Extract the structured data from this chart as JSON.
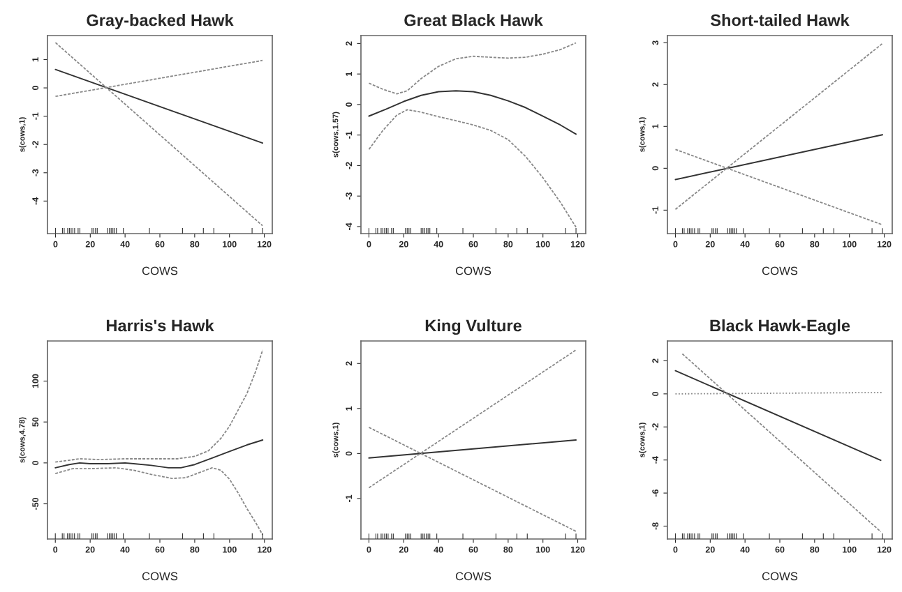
{
  "chart_data": [
    {
      "type": "line",
      "title": "Gray-backed Hawk",
      "xlabel": "COWS",
      "ylabel": "s(cows,1)",
      "xlim": [
        -4.6,
        124.6
      ],
      "ylim": [
        -5.15,
        1.85
      ],
      "xticks": [
        0,
        20,
        40,
        60,
        80,
        100,
        120
      ],
      "yticks": [
        -4,
        -3,
        -2,
        -1,
        0,
        1
      ],
      "series": [
        {
          "color": "#333333",
          "line_style": "solid",
          "x": [
            0,
            119
          ],
          "values": [
            0.65,
            -1.95
          ]
        },
        {
          "color": "#888888",
          "line_style": "dashed",
          "x": [
            0,
            119
          ],
          "values": [
            -0.3,
            0.97
          ]
        },
        {
          "color": "#888888",
          "line_style": "dashed",
          "x": [
            0,
            119
          ],
          "values": [
            1.6,
            -4.87
          ]
        },
        {
          "type": "bar",
          "color": "#333333",
          "x": [
            0,
            4,
            5,
            7,
            8,
            9,
            10,
            11,
            13,
            14,
            21,
            22,
            23,
            24,
            30,
            31,
            32,
            33,
            34,
            35,
            39,
            54,
            73,
            85,
            91,
            113,
            119
          ],
          "base": [
            -5.15,
            -5.15,
            -5.15,
            -5.15,
            -5.15,
            -5.15,
            -5.15,
            -5.15,
            -5.15,
            -5.15,
            -5.15,
            -5.15,
            -5.15,
            -5.15,
            -5.15,
            -5.15,
            -5.15,
            -5.15,
            -5.15,
            -5.15,
            -5.15,
            -5.15,
            -5.15,
            -5.15,
            -5.15,
            -5.15,
            -5.15
          ],
          "values": [
            0.2,
            0.2,
            0.2,
            0.2,
            0.2,
            0.2,
            0.2,
            0.2,
            0.2,
            0.2,
            0.2,
            0.2,
            0.2,
            0.2,
            0.2,
            0.2,
            0.2,
            0.2,
            0.2,
            0.2,
            0.2,
            0.2,
            0.2,
            0.2,
            0.2,
            0.2,
            0.2
          ]
        }
      ]
    },
    {
      "type": "line",
      "title": "Great Black Hawk",
      "xlabel": "COWS",
      "ylabel": "s(cows,1.57)",
      "xlim": [
        -4.6,
        124.6
      ],
      "ylim": [
        -4.23,
        2.26
      ],
      "xticks": [
        0,
        20,
        40,
        60,
        80,
        100,
        120
      ],
      "yticks": [
        -4,
        -3,
        -2,
        -1,
        0,
        1,
        2
      ],
      "series": [
        {
          "color": "#333333",
          "line_style": "solid",
          "x": [
            0,
            10,
            20,
            30,
            40,
            50,
            60,
            70,
            80,
            90,
            100,
            110,
            119
          ],
          "values": [
            -0.38,
            -0.15,
            0.1,
            0.3,
            0.42,
            0.45,
            0.42,
            0.3,
            0.12,
            -0.1,
            -0.38,
            -0.67,
            -0.97
          ]
        },
        {
          "color": "#888888",
          "line_style": "dashed",
          "x": [
            0,
            8,
            16,
            22,
            30,
            40,
            50,
            60,
            70,
            80,
            90,
            100,
            110,
            119
          ],
          "values": [
            0.7,
            0.5,
            0.35,
            0.45,
            0.85,
            1.25,
            1.5,
            1.58,
            1.55,
            1.52,
            1.55,
            1.65,
            1.8,
            2.02
          ]
        },
        {
          "color": "#888888",
          "line_style": "dashed",
          "x": [
            0,
            8,
            16,
            22,
            30,
            40,
            50,
            60,
            70,
            80,
            90,
            100,
            110,
            119
          ],
          "values": [
            -1.47,
            -0.85,
            -0.35,
            -0.17,
            -0.25,
            -0.4,
            -0.53,
            -0.67,
            -0.85,
            -1.15,
            -1.7,
            -2.4,
            -3.2,
            -4.02
          ]
        },
        {
          "type": "bar",
          "color": "#333333",
          "x": [
            0,
            4,
            5,
            7,
            8,
            9,
            10,
            11,
            13,
            14,
            21,
            22,
            23,
            24,
            30,
            31,
            32,
            33,
            34,
            35,
            39,
            54,
            73,
            85,
            91,
            113,
            119
          ],
          "base": [
            -4.23,
            -4.23,
            -4.23,
            -4.23,
            -4.23,
            -4.23,
            -4.23,
            -4.23,
            -4.23,
            -4.23,
            -4.23,
            -4.23,
            -4.23,
            -4.23,
            -4.23,
            -4.23,
            -4.23,
            -4.23,
            -4.23,
            -4.23,
            -4.23,
            -4.23,
            -4.23,
            -4.23,
            -4.23,
            -4.23,
            -4.23
          ],
          "values": [
            0.18,
            0.18,
            0.18,
            0.18,
            0.18,
            0.18,
            0.18,
            0.18,
            0.18,
            0.18,
            0.18,
            0.18,
            0.18,
            0.18,
            0.18,
            0.18,
            0.18,
            0.18,
            0.18,
            0.18,
            0.18,
            0.18,
            0.18,
            0.18,
            0.18,
            0.18,
            0.18
          ]
        }
      ]
    },
    {
      "type": "line",
      "title": "Short-tailed Hawk",
      "xlabel": "COWS",
      "ylabel": "s(cows,1)",
      "xlim": [
        -4.6,
        124.6
      ],
      "ylim": [
        -1.56,
        3.17
      ],
      "xticks": [
        0,
        20,
        40,
        60,
        80,
        100,
        120
      ],
      "yticks": [
        -1,
        0,
        1,
        2,
        3
      ],
      "series": [
        {
          "color": "#333333",
          "line_style": "solid",
          "x": [
            0,
            119
          ],
          "values": [
            -0.27,
            0.8
          ]
        },
        {
          "color": "#888888",
          "line_style": "dashed",
          "x": [
            0,
            119
          ],
          "values": [
            -0.98,
            2.98
          ]
        },
        {
          "color": "#888888",
          "line_style": "dashed",
          "x": [
            0,
            119
          ],
          "values": [
            0.45,
            -1.35
          ]
        },
        {
          "type": "bar",
          "color": "#333333",
          "x": [
            0,
            4,
            5,
            7,
            8,
            9,
            10,
            11,
            13,
            14,
            21,
            22,
            23,
            24,
            30,
            31,
            32,
            33,
            34,
            35,
            39,
            54,
            73,
            85,
            91,
            113,
            119
          ],
          "base": [
            -1.56,
            -1.56,
            -1.56,
            -1.56,
            -1.56,
            -1.56,
            -1.56,
            -1.56,
            -1.56,
            -1.56,
            -1.56,
            -1.56,
            -1.56,
            -1.56,
            -1.56,
            -1.56,
            -1.56,
            -1.56,
            -1.56,
            -1.56,
            -1.56,
            -1.56,
            -1.56,
            -1.56,
            -1.56,
            -1.56,
            -1.56
          ],
          "values": [
            0.13,
            0.13,
            0.13,
            0.13,
            0.13,
            0.13,
            0.13,
            0.13,
            0.13,
            0.13,
            0.13,
            0.13,
            0.13,
            0.13,
            0.13,
            0.13,
            0.13,
            0.13,
            0.13,
            0.13,
            0.13,
            0.13,
            0.13,
            0.13,
            0.13,
            0.13,
            0.13
          ]
        }
      ]
    },
    {
      "type": "line",
      "title": "Harris's Hawk",
      "xlabel": "COWS",
      "ylabel": "s(cows,4.78)",
      "xlim": [
        -4.5,
        124.5
      ],
      "ylim": [
        -93,
        149
      ],
      "xticks": [
        0,
        20,
        40,
        60,
        80,
        100,
        120
      ],
      "yticks": [
        -50,
        0,
        50,
        100
      ],
      "series": [
        {
          "color": "#333333",
          "line_style": "solid",
          "x": [
            0,
            8,
            14,
            20,
            30,
            40,
            45,
            55,
            65,
            72,
            80,
            90,
            100,
            110,
            119
          ],
          "values": [
            -6,
            -2,
            0,
            -1,
            -1,
            0,
            -1,
            -3,
            -6,
            -6,
            -2,
            6,
            14,
            22,
            28
          ]
        },
        {
          "color": "#888888",
          "line_style": "dashed",
          "x": [
            0,
            14,
            25,
            40,
            55,
            70,
            80,
            88,
            95,
            100,
            105,
            110,
            115,
            119
          ],
          "values": [
            1,
            5,
            4,
            5,
            5,
            5,
            8,
            15,
            30,
            45,
            65,
            85,
            112,
            138
          ]
        },
        {
          "color": "#888888",
          "line_style": "dashed",
          "x": [
            0,
            10,
            20,
            35,
            45,
            55,
            67,
            75,
            85,
            90,
            95,
            100,
            105,
            110,
            115,
            119
          ],
          "values": [
            -13,
            -7,
            -7,
            -6,
            -9,
            -14,
            -19,
            -18,
            -10,
            -6,
            -9,
            -20,
            -37,
            -56,
            -73,
            -88
          ]
        },
        {
          "type": "bar",
          "color": "#333333",
          "x": [
            0,
            4,
            5,
            7,
            8,
            9,
            10,
            11,
            13,
            14,
            21,
            22,
            23,
            24,
            30,
            31,
            32,
            33,
            34,
            35,
            39,
            54,
            73,
            85,
            91,
            113,
            119
          ],
          "base": [
            -93,
            -93,
            -93,
            -93,
            -93,
            -93,
            -93,
            -93,
            -93,
            -93,
            -93,
            -93,
            -93,
            -93,
            -93,
            -93,
            -93,
            -93,
            -93,
            -93,
            -93,
            -93,
            -93,
            -93,
            -93,
            -93,
            -93
          ],
          "values": [
            7,
            7,
            7,
            7,
            7,
            7,
            7,
            7,
            7,
            7,
            7,
            7,
            7,
            7,
            7,
            7,
            7,
            7,
            7,
            7,
            7,
            7,
            7,
            7,
            7,
            7,
            7
          ]
        }
      ]
    },
    {
      "type": "line",
      "title": "King Vulture",
      "xlabel": "COWS",
      "ylabel": "s(cows,1)",
      "xlim": [
        -4.6,
        124.6
      ],
      "ylim": [
        -1.9,
        2.5
      ],
      "xticks": [
        0,
        20,
        40,
        60,
        80,
        100,
        120
      ],
      "yticks": [
        -1,
        0,
        1,
        2
      ],
      "series": [
        {
          "color": "#333333",
          "line_style": "solid",
          "x": [
            0,
            119
          ],
          "values": [
            -0.1,
            0.3
          ]
        },
        {
          "color": "#888888",
          "line_style": "dashed",
          "x": [
            0,
            119
          ],
          "values": [
            -0.76,
            2.3
          ]
        },
        {
          "color": "#888888",
          "line_style": "dashed",
          "x": [
            0,
            119
          ],
          "values": [
            0.58,
            -1.73
          ]
        },
        {
          "type": "bar",
          "color": "#333333",
          "x": [
            0,
            4,
            5,
            7,
            8,
            9,
            10,
            11,
            13,
            14,
            21,
            22,
            23,
            24,
            30,
            31,
            32,
            33,
            34,
            35,
            39,
            54,
            73,
            85,
            91,
            113,
            119
          ],
          "base": [
            -1.9,
            -1.9,
            -1.9,
            -1.9,
            -1.9,
            -1.9,
            -1.9,
            -1.9,
            -1.9,
            -1.9,
            -1.9,
            -1.9,
            -1.9,
            -1.9,
            -1.9,
            -1.9,
            -1.9,
            -1.9,
            -1.9,
            -1.9,
            -1.9,
            -1.9,
            -1.9,
            -1.9,
            -1.9,
            -1.9,
            -1.9
          ],
          "values": [
            0.12,
            0.12,
            0.12,
            0.12,
            0.12,
            0.12,
            0.12,
            0.12,
            0.12,
            0.12,
            0.12,
            0.12,
            0.12,
            0.12,
            0.12,
            0.12,
            0.12,
            0.12,
            0.12,
            0.12,
            0.12,
            0.12,
            0.12,
            0.12,
            0.12,
            0.12,
            0.12
          ]
        }
      ]
    },
    {
      "type": "line",
      "title": "Black Hawk-Eagle",
      "xlabel": "COWS",
      "ylabel": "s(cows,1)",
      "xlim": [
        -4.6,
        124.6
      ],
      "ylim": [
        -8.78,
        3.2
      ],
      "xticks": [
        0,
        20,
        40,
        60,
        80,
        100,
        120
      ],
      "yticks": [
        -8,
        -6,
        -4,
        -2,
        0,
        2
      ],
      "series": [
        {
          "color": "#333333",
          "line_style": "solid",
          "x": [
            0,
            118
          ],
          "values": [
            1.4,
            -4.02
          ]
        },
        {
          "color": "#888888",
          "line_style": "dashed",
          "x": [
            4,
            118
          ],
          "values": [
            2.42,
            -8.34
          ]
        },
        {
          "color": "#888888",
          "line_style": "dotted",
          "x": [
            0,
            119
          ],
          "values": [
            0,
            0.08
          ]
        },
        {
          "type": "bar",
          "color": "#333333",
          "x": [
            0,
            4,
            5,
            7,
            8,
            9,
            10,
            11,
            13,
            14,
            21,
            22,
            23,
            24,
            30,
            31,
            32,
            33,
            34,
            35,
            39,
            54,
            73,
            85,
            91,
            113,
            119
          ],
          "base": [
            -8.78,
            -8.78,
            -8.78,
            -8.78,
            -8.78,
            -8.78,
            -8.78,
            -8.78,
            -8.78,
            -8.78,
            -8.78,
            -8.78,
            -8.78,
            -8.78,
            -8.78,
            -8.78,
            -8.78,
            -8.78,
            -8.78,
            -8.78,
            -8.78,
            -8.78,
            -8.78,
            -8.78,
            -8.78,
            -8.78,
            -8.78
          ],
          "values": [
            0.34,
            0.34,
            0.34,
            0.34,
            0.34,
            0.34,
            0.34,
            0.34,
            0.34,
            0.34,
            0.34,
            0.34,
            0.34,
            0.34,
            0.34,
            0.34,
            0.34,
            0.34,
            0.34,
            0.34,
            0.34,
            0.34,
            0.34,
            0.34,
            0.34,
            0.34,
            0.34
          ]
        }
      ]
    }
  ]
}
